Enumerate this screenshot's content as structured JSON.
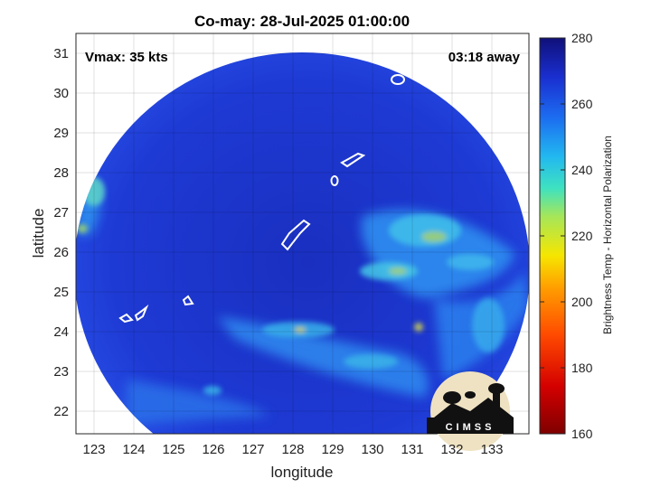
{
  "title": "Co-may: 28-Jul-2025 01:00:00",
  "annotations": {
    "vmax": "Vmax: 35 kts",
    "time_away": "03:18 away"
  },
  "axes": {
    "xlabel": "longitude",
    "ylabel": "latitude",
    "x_ticks": [
      "123",
      "124",
      "125",
      "126",
      "127",
      "128",
      "129",
      "130",
      "131",
      "132",
      "133"
    ],
    "y_ticks": [
      "31",
      "30",
      "29",
      "28",
      "27",
      "26",
      "25",
      "24",
      "23",
      "22"
    ]
  },
  "colorbar": {
    "label": "Brightness Temp - Horizontal Polarization",
    "ticks": [
      "280",
      "260",
      "240",
      "220",
      "200",
      "180",
      "160"
    ],
    "range": [
      160,
      280
    ]
  },
  "logo": {
    "text": "CIMSS"
  },
  "colors": {
    "background_cold": "#1a33c8",
    "swath_edge": "#2244e0",
    "rainband_cyan": "#39c6ea",
    "rainband_green": "#9bd46a"
  }
}
